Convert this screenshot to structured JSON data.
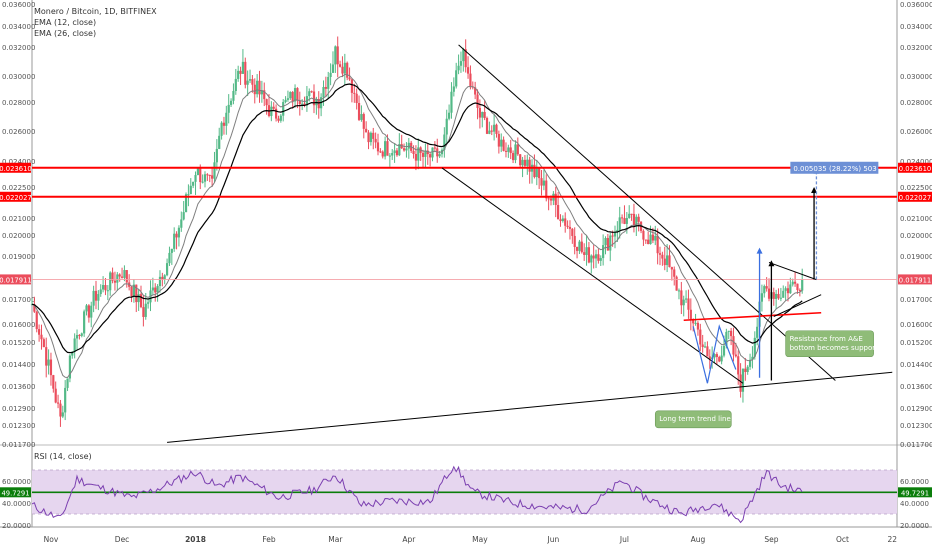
{
  "legend": {
    "title": "Monero / Bitcoin, 1D, BITFINEX",
    "ema12": "EMA (12, close)",
    "ema26": "EMA (26, close)"
  },
  "rsi_legend": "RSI (14, close)",
  "colors": {
    "up": "#53b987",
    "down": "#eb4d5c",
    "ema12": "#7f7f7f",
    "ema26": "#000000",
    "resistance": "#ff0000",
    "rsi": "#7b3fb0",
    "rsi_band": "#e6d6ef",
    "rsi_mid": "#0a7d0a",
    "projection": "#000000",
    "arrow_blue": "#3a6fe0",
    "measure_box": "#6d90d6",
    "note_box": "#8fbc78"
  },
  "chart_data": {
    "type": "candlestick",
    "title": "Monero / Bitcoin, 1D, BITFINEX",
    "xlabel": "",
    "ylabel": "",
    "ylim": [
      0.0117,
      0.0361
    ],
    "x_ticks": [
      "Nov",
      "Dec",
      "2018",
      "Feb",
      "Mar",
      "Apr",
      "May",
      "Jun",
      "Jul",
      "Aug",
      "Sep",
      "Oct",
      "22"
    ],
    "y_ticks": [
      "0.036000",
      "0.034000",
      "0.032000",
      "0.030000",
      "0.028000",
      "0.026000",
      "0.024000",
      "0.022500",
      "0.021000",
      "0.020000",
      "0.019000",
      "0.017000",
      "0.016000",
      "0.015200",
      "0.014400",
      "0.013600",
      "0.012900",
      "0.012300",
      "0.011700"
    ],
    "price_labels": [
      {
        "label": "0.023610",
        "value": 0.02361,
        "color": "#ff0000"
      },
      {
        "label": "0.022027",
        "value": 0.022027,
        "color": "#ff0000"
      },
      {
        "label": "0.017911",
        "value": 0.017911,
        "color": "#eb4d5c"
      }
    ],
    "close_anchors": [
      {
        "date": "2017-10-24",
        "close": 0.0168
      },
      {
        "date": "2017-11-05",
        "close": 0.0125
      },
      {
        "date": "2017-11-10",
        "close": 0.0151
      },
      {
        "date": "2017-11-20",
        "close": 0.0172
      },
      {
        "date": "2017-12-01",
        "close": 0.0183
      },
      {
        "date": "2017-12-10",
        "close": 0.0165
      },
      {
        "date": "2017-12-22",
        "close": 0.0192
      },
      {
        "date": "2018-01-01",
        "close": 0.0235
      },
      {
        "date": "2018-01-08",
        "close": 0.0225
      },
      {
        "date": "2018-01-12",
        "close": 0.0265
      },
      {
        "date": "2018-01-20",
        "close": 0.0305
      },
      {
        "date": "2018-01-26",
        "close": 0.0292
      },
      {
        "date": "2018-02-03",
        "close": 0.027
      },
      {
        "date": "2018-02-12",
        "close": 0.0286
      },
      {
        "date": "2018-02-22",
        "close": 0.0282
      },
      {
        "date": "2018-03-01",
        "close": 0.0316
      },
      {
        "date": "2018-03-06",
        "close": 0.0305
      },
      {
        "date": "2018-03-14",
        "close": 0.0256
      },
      {
        "date": "2018-03-20",
        "close": 0.0248
      },
      {
        "date": "2018-03-28",
        "close": 0.025
      },
      {
        "date": "2018-04-08",
        "close": 0.0242
      },
      {
        "date": "2018-04-15",
        "close": 0.0245
      },
      {
        "date": "2018-04-23",
        "close": 0.0317
      },
      {
        "date": "2018-05-01",
        "close": 0.027
      },
      {
        "date": "2018-05-10",
        "close": 0.0252
      },
      {
        "date": "2018-05-20",
        "close": 0.0241
      },
      {
        "date": "2018-05-28",
        "close": 0.0225
      },
      {
        "date": "2018-06-06",
        "close": 0.0208
      },
      {
        "date": "2018-06-14",
        "close": 0.019
      },
      {
        "date": "2018-06-22",
        "close": 0.0193
      },
      {
        "date": "2018-06-30",
        "close": 0.021
      },
      {
        "date": "2018-07-06",
        "close": 0.0206
      },
      {
        "date": "2018-07-12",
        "close": 0.0198
      },
      {
        "date": "2018-07-18",
        "close": 0.0189
      },
      {
        "date": "2018-07-26",
        "close": 0.0168
      },
      {
        "date": "2018-07-31",
        "close": 0.016
      },
      {
        "date": "2018-08-05",
        "close": 0.0145
      },
      {
        "date": "2018-08-10",
        "close": 0.0148
      },
      {
        "date": "2018-08-14",
        "close": 0.0155
      },
      {
        "date": "2018-08-19",
        "close": 0.0137
      },
      {
        "date": "2018-08-24",
        "close": 0.015
      },
      {
        "date": "2018-08-29",
        "close": 0.0175
      },
      {
        "date": "2018-09-04",
        "close": 0.0172
      },
      {
        "date": "2018-09-09",
        "close": 0.0176
      },
      {
        "date": "2018-09-14",
        "close": 0.0179
      }
    ],
    "rsi": {
      "name": "RSI (14, close)",
      "ylim": [
        20,
        80
      ],
      "y_ticks": [
        "60.0000",
        "40.0000",
        "20.0000"
      ],
      "band": [
        30,
        70
      ],
      "current": 49.7291,
      "current_label": "49.7291",
      "anchors": [
        {
          "date": "2017-10-24",
          "value": 38
        },
        {
          "date": "2017-11-05",
          "value": 25
        },
        {
          "date": "2017-11-12",
          "value": 62
        },
        {
          "date": "2017-11-20",
          "value": 55
        },
        {
          "date": "2017-12-05",
          "value": 45
        },
        {
          "date": "2017-12-15",
          "value": 52
        },
        {
          "date": "2018-01-01",
          "value": 68
        },
        {
          "date": "2018-01-10",
          "value": 55
        },
        {
          "date": "2018-01-20",
          "value": 64
        },
        {
          "date": "2018-02-05",
          "value": 45
        },
        {
          "date": "2018-02-20",
          "value": 52
        },
        {
          "date": "2018-03-01",
          "value": 66
        },
        {
          "date": "2018-03-12",
          "value": 38
        },
        {
          "date": "2018-03-25",
          "value": 42
        },
        {
          "date": "2018-04-10",
          "value": 41
        },
        {
          "date": "2018-04-20",
          "value": 75
        },
        {
          "date": "2018-04-28",
          "value": 50
        },
        {
          "date": "2018-05-15",
          "value": 40
        },
        {
          "date": "2018-05-30",
          "value": 36
        },
        {
          "date": "2018-06-15",
          "value": 34
        },
        {
          "date": "2018-06-30",
          "value": 60
        },
        {
          "date": "2018-07-10",
          "value": 45
        },
        {
          "date": "2018-07-25",
          "value": 30
        },
        {
          "date": "2018-08-08",
          "value": 40
        },
        {
          "date": "2018-08-19",
          "value": 24
        },
        {
          "date": "2018-08-30",
          "value": 68
        },
        {
          "date": "2018-09-05",
          "value": 56
        },
        {
          "date": "2018-09-14",
          "value": 50
        }
      ]
    },
    "annotations": [
      {
        "type": "measure",
        "label": "0.005035 (28.22%) 503"
      },
      {
        "type": "note",
        "lines": [
          "Resistance from A&E",
          "bottom becomes support"
        ]
      },
      {
        "type": "note",
        "lines": [
          "Long term trend line"
        ]
      }
    ]
  }
}
